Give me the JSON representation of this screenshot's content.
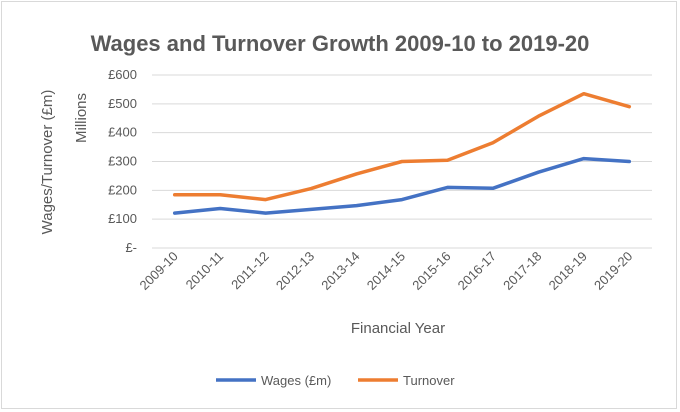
{
  "chart_data": {
    "type": "line",
    "title": "Wages and Turnover Growth 2009-10 to 2019-20",
    "xlabel": "Financial Year",
    "ylabel": "Wages/Turnover (£m)",
    "y_units_label": "Millions",
    "categories": [
      "2009-10",
      "2010-11",
      "2011-12",
      "2012-13",
      "2013-14",
      "2014-15",
      "2015-16",
      "2016-17",
      "2017-18",
      "2018-19",
      "2019-20"
    ],
    "ylim": [
      0,
      600
    ],
    "yticks": [
      0,
      100,
      200,
      300,
      400,
      500,
      600
    ],
    "ytick_labels": [
      "£-",
      "£100",
      "£200",
      "£300",
      "£400",
      "£500",
      "£600"
    ],
    "grid": true,
    "legend_position": "bottom",
    "series": [
      {
        "name": "Wages (£m)",
        "color": "#4472c4",
        "values": [
          121,
          137,
          121,
          134,
          147,
          168,
          210,
          207,
          263,
          310,
          300
        ]
      },
      {
        "name": "Turnover",
        "color": "#ed7d31",
        "values": [
          185,
          185,
          168,
          206,
          257,
          300,
          304,
          365,
          457,
          535,
          490
        ]
      }
    ]
  }
}
